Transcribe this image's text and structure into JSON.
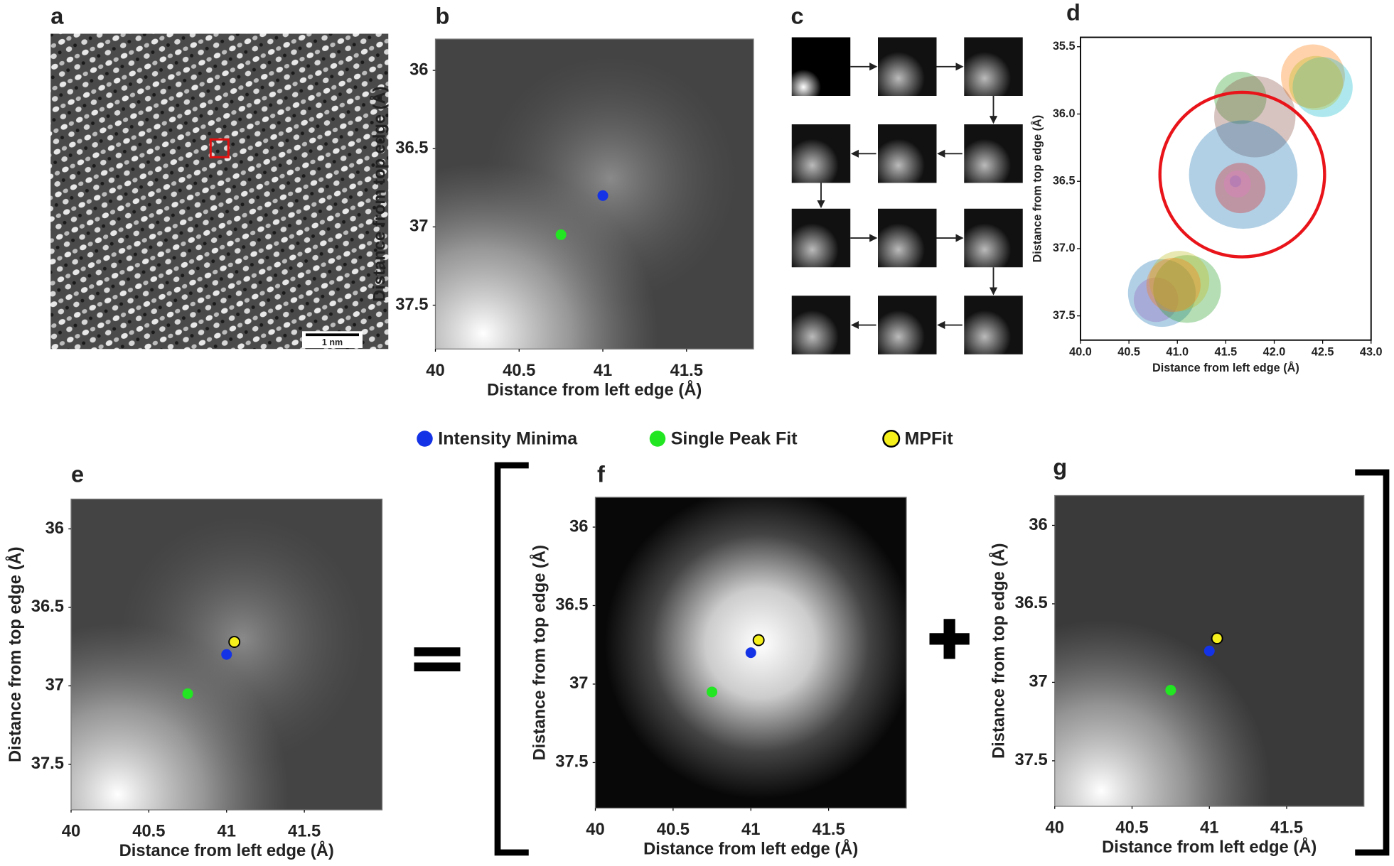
{
  "panels": {
    "a": {
      "label": "a",
      "scale_bar": "1 nm"
    },
    "c": {
      "label": "c"
    }
  },
  "legend": [
    {
      "name": "Intensity Minima",
      "color": "#1433e6",
      "text_color": "#1a3fd8"
    },
    {
      "name": "Single Peak Fit",
      "color": "#22e622",
      "text_color": "#4b7d2b"
    },
    {
      "name": "MPFit",
      "color": "#f5ef1c",
      "text_color": "#c8901a"
    }
  ],
  "chart_data": [
    {
      "label": "b",
      "type": "scatter",
      "xlabel": "Distance from left edge (Å)",
      "ylabel": "Distance from top edge (Å)",
      "xlim": [
        40,
        41.9
      ],
      "ylim": [
        37.78,
        35.8
      ],
      "xticks": [
        40,
        40.5,
        41,
        41.5
      ],
      "yticks": [
        36,
        36.5,
        37,
        37.5
      ],
      "x": [
        41.0,
        40.75
      ],
      "values": [
        36.8,
        37.05
      ]
    },
    {
      "label": "d",
      "type": "bubble",
      "xlabel": "Distance from left edge (Å)",
      "ylabel": "Distance from top edge (Å)",
      "xlim": [
        40,
        43
      ],
      "ylim": [
        37.68,
        35.43
      ],
      "xticks": [
        {
          "value": 40,
          "label": "40.0"
        },
        40.5,
        {
          "value": 41,
          "label": "41.0"
        },
        41.5,
        {
          "value": 42,
          "label": "42.0"
        },
        42.5,
        {
          "value": 43,
          "label": "43.0"
        }
      ],
      "yticks": [
        35.5,
        {
          "value": 36,
          "label": "36.0"
        },
        36.5,
        {
          "value": 37,
          "label": "37.0"
        },
        37.5
      ],
      "x": [
        42.4,
        42.5,
        42.43,
        41.65,
        41.8,
        41.68,
        41.65,
        41.62,
        41.6,
        40.84,
        40.78,
        41.1,
        41.02,
        40.96
      ],
      "values": [
        35.72,
        35.8,
        35.77,
        35.88,
        36.02,
        36.45,
        36.55,
        36.52,
        36.5,
        37.33,
        37.38,
        37.3,
        37.24,
        37.27
      ],
      "sizes": [
        0.33,
        0.31,
        0.28,
        0.27,
        0.42,
        0.56,
        0.26,
        0.14,
        0.06,
        0.35,
        0.23,
        0.35,
        0.31,
        0.28
      ],
      "colors": [
        "#ff7f0e",
        "#17becf",
        "#bcbd22",
        "#2ca02c",
        "#8c564b",
        "#1f77b4",
        "#d62728",
        "#e377c2",
        "#9467bd",
        "#1f77b4",
        "#9467bd",
        "#2ca02c",
        "#bcbd22",
        "#ff7f0e"
      ],
      "highlight": {
        "x": 41.67,
        "y": 36.45,
        "r": 0.85,
        "color": "#e8141a"
      }
    },
    {
      "label": "e",
      "type": "scatter",
      "xlabel": "Distance from left edge (Å)",
      "ylabel": "Distance from top edge (Å)",
      "xlim": [
        40,
        42
      ],
      "ylim": [
        37.79,
        35.81
      ],
      "xticks": [
        40,
        40.5,
        41,
        41.5
      ],
      "yticks": [
        36,
        36.5,
        37,
        37.5
      ],
      "x": [
        41.0,
        40.75,
        41.05
      ],
      "values": [
        36.8,
        37.05,
        36.72
      ]
    },
    {
      "label": "f",
      "type": "scatter",
      "xlabel": "Distance from left edge (Å)",
      "ylabel": "Distance from top edge (Å)",
      "xlim": [
        40,
        42
      ],
      "ylim": [
        37.79,
        35.81
      ],
      "xticks": [
        40,
        40.5,
        41,
        41.5
      ],
      "yticks": [
        36,
        36.5,
        37,
        37.5
      ],
      "x": [
        41.0,
        40.75,
        41.05
      ],
      "values": [
        36.8,
        37.05,
        36.72
      ]
    },
    {
      "label": "g",
      "type": "scatter",
      "xlabel": "Distance from left edge (Å)",
      "ylabel": "Distance from top edge (Å)",
      "xlim": [
        40,
        42
      ],
      "ylim": [
        37.79,
        35.81
      ],
      "xticks": [
        40,
        40.5,
        41,
        41.5
      ],
      "yticks": [
        36,
        36.5,
        37,
        37.5
      ],
      "x": [
        41.0,
        40.75,
        41.05
      ],
      "values": [
        36.8,
        37.05,
        36.72
      ]
    }
  ]
}
